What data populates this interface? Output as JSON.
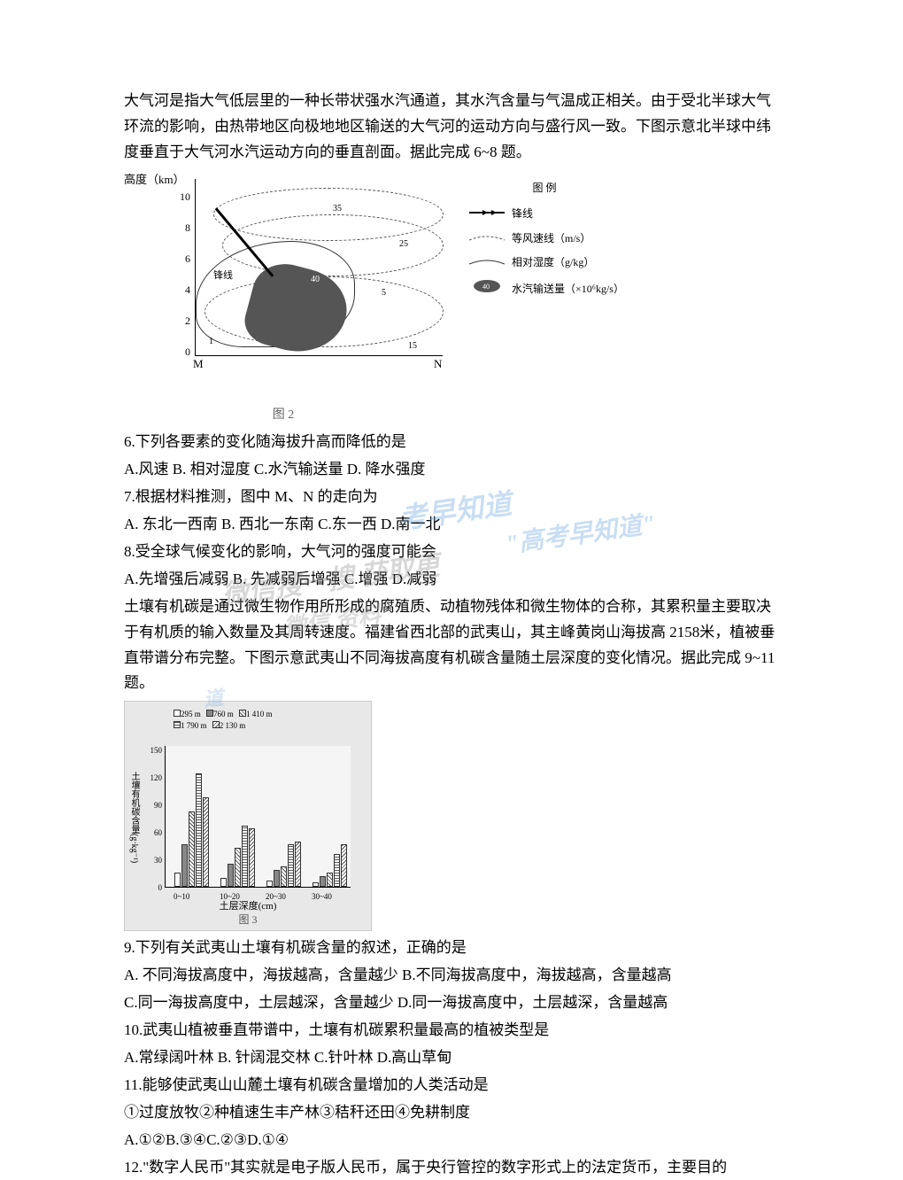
{
  "intro1": "大气河是指大气低层里的一种长带状强水汽通道，其水汽含量与气温成正相关。由于受北半球大气环流的影响，由热带地区向极地地区输送的大气河的运动方向与盛行风一致。下图示意北半球中纬度垂直于大气河水汽运动方向的垂直剖面。据此完成 6~8 题。",
  "fig1": {
    "y_axis_label": "高度（km）",
    "y_ticks": [
      0,
      2,
      4,
      6,
      8,
      10
    ],
    "x_left": "M",
    "x_right": "N",
    "legend_title": "图 例",
    "legend_items": [
      {
        "sym": "front",
        "label": "锋线"
      },
      {
        "sym": "dashed",
        "label": "等风速线（m/s）"
      },
      {
        "sym": "solid",
        "label": "相对湿度（g/kg）"
      },
      {
        "sym": "blob",
        "label": "水汽输送量（×10⁶kg/s）"
      }
    ],
    "contour_labels": [
      "35",
      "25",
      "5",
      "40",
      "15",
      "1",
      "5"
    ],
    "caption": "图 2"
  },
  "q6": "6.下列各要素的变化随海拔升高而降低的是",
  "q6opts": "A.风速 B. 相对湿度 C.水汽输送量 D. 降水强度",
  "q7": "7.根据材料推测，图中 M、N 的走向为",
  "q7opts": "A. 东北一西南 B. 西北一东南 C.东一西 D.南一北",
  "q8": "8.受全球气候变化的影响，大气河的强度可能会",
  "q8opts": "A.先增强后减弱 B. 先减弱后增强 C.增强 D.减弱",
  "intro2a": "土壤有机碳是通过微生物作用所形成的腐殖质、动植物残体和微生物体的合称，其累积量主要取决于有机质的输入数量及其周转速度。福建省西北部的武夷山，其主峰黄岗山海拔高 2158米，植被垂直带谱分布完整。下图示意武夷山不同海拔高度有机碳含量随土层深度的变化情况。据此完成 9~11 题。",
  "fig2": {
    "y_axis_label": "土壤有机碳含量(g·kg⁻¹)",
    "y_ticks": [
      0,
      30,
      60,
      90,
      120,
      150
    ],
    "x_axis_label": "土层深度(cm)",
    "x_ticks": [
      "0~10",
      "10~20",
      "20~30",
      "30~40"
    ],
    "legend": [
      "295 m",
      "760 m",
      "1 410 m",
      "1 790 m",
      "2 130 m"
    ],
    "series": {
      "295m": [
        15,
        10,
        7,
        5
      ],
      "760m": [
        45,
        25,
        18,
        12
      ],
      "1410m": [
        80,
        42,
        22,
        15
      ],
      "1790m": [
        120,
        65,
        45,
        35
      ],
      "2130m": [
        95,
        62,
        48,
        45
      ]
    },
    "bar_patterns": [
      "#fff",
      "#888",
      "repeating-linear-gradient(45deg,#fff,#fff 2px,#555 2px,#555 3px)",
      "repeating-linear-gradient(0deg,#fff,#fff 2px,#555 2px,#555 3px)",
      "repeating-linear-gradient(-45deg,#fff,#fff 2px,#555 2px,#555 3px)"
    ],
    "caption": "图 3"
  },
  "q9": "9.下列有关武夷山土壤有机碳含量的叙述，正确的是",
  "q9opts": "A. 不同海拔高度中，海拔越高，含量越少 B.不同海拔高度中，海拔越高，含量越高",
  "q9opts2": "C.同一海拔高度中，土层越深，含量越少 D.同一海拔高度中，土层越深，含量越高",
  "q10": "10.武夷山植被垂直带谱中，土壤有机碳累积量最高的植被类型是",
  "q10opts": "A.常绿阔叶林 B. 针阔混交林 C.针叶林 D.高山草甸",
  "q11": "11.能够使武夷山山麓土壤有机碳含量增加的人类活动是",
  "q11opts": "①过度放牧②种植速生丰产林③秸秆还田④免耕制度",
  "q11opts2": "A.①②B.③④C.②③D.①④",
  "q12": "12.\"数字人民币\"其实就是电子版人民币，属于央行管控的数字形式上的法定货币，主要目的",
  "watermarks": {
    "w1": "考早知道",
    "w2": "\"高考早知道\"",
    "w3": "微信搜一搜   获取更",
    "w4": "微信        资料",
    "w5": "道"
  }
}
